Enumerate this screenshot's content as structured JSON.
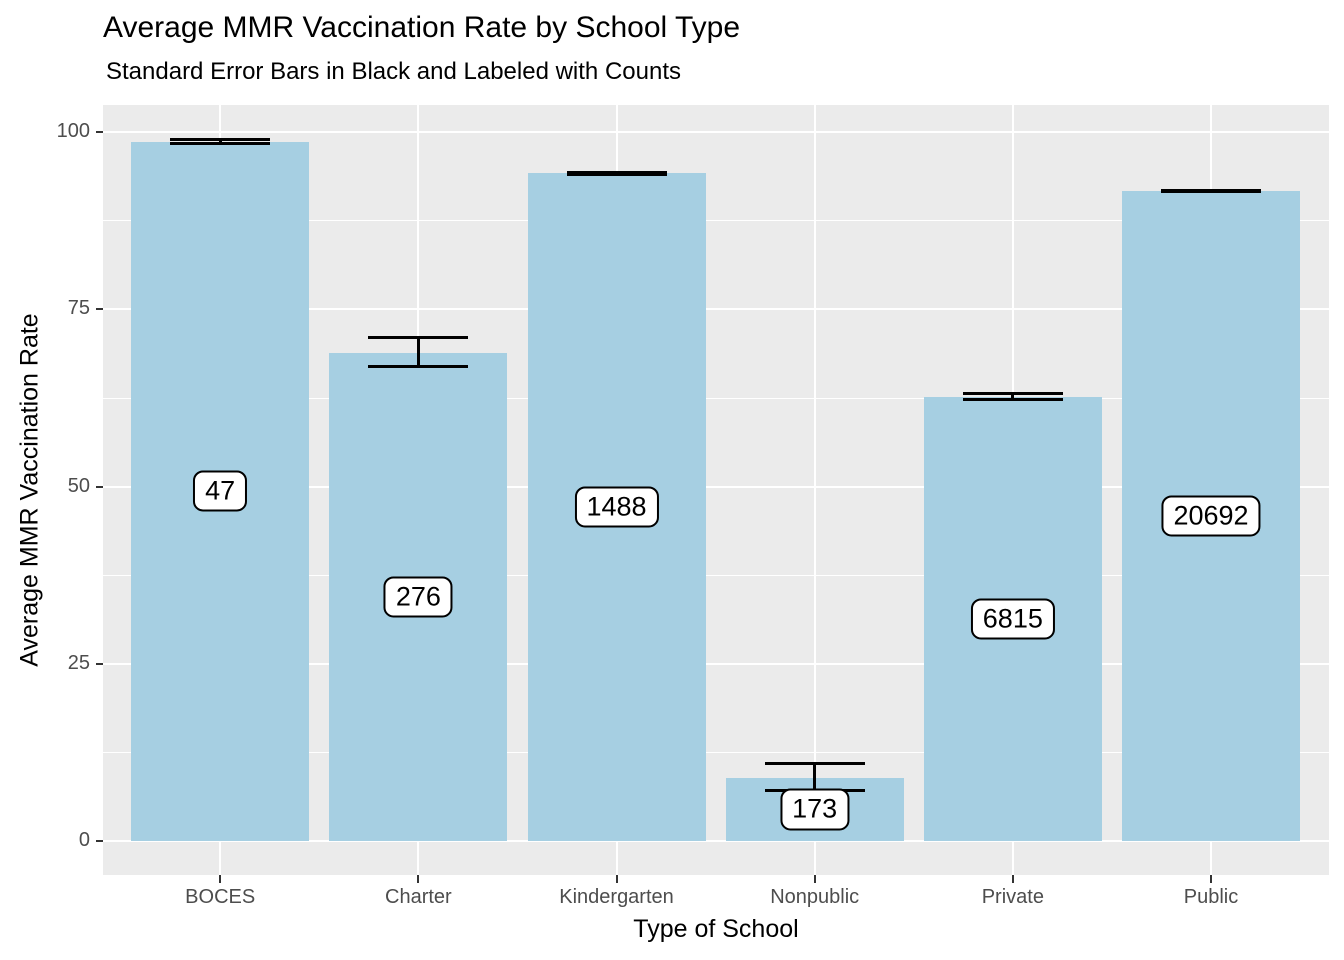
{
  "figure": {
    "title": "Average MMR Vaccination Rate by School Type",
    "subtitle": "Standard Error Bars in Black and Labeled with Counts"
  },
  "chart_data": {
    "type": "bar",
    "title": "Average MMR Vaccination Rate by School Type",
    "subtitle": "Standard Error Bars in Black and Labeled with Counts",
    "xlabel": "Type of School",
    "ylabel": "Average MMR Vaccination Rate",
    "categories": [
      "BOCES",
      "Charter",
      "Kindergarten",
      "Nonpublic",
      "Private",
      "Public"
    ],
    "values": [
      98.7,
      68.9,
      94.2,
      8.9,
      62.6,
      91.7
    ],
    "error_upper": [
      99.2,
      71.2,
      94.5,
      11.1,
      63.3,
      92.0
    ],
    "error_lower": [
      98.2,
      66.7,
      93.8,
      6.9,
      62.1,
      91.5
    ],
    "count_labels": [
      "47",
      "276",
      "1488",
      "173",
      "6815",
      "20692"
    ],
    "yticks": [
      0,
      25,
      50,
      75,
      100
    ],
    "yticks_minor": [
      12.5,
      37.5,
      62.5,
      87.5
    ],
    "ylim": [
      -4.8,
      103.8
    ],
    "grid": true,
    "legend": "none",
    "colors": {
      "bar_fill": "#A6CFE2",
      "error_bar": "#000000",
      "panel_bg": "#EBEBEB",
      "gridline": "#FFFFFF",
      "tick_label": "#4D4D4D",
      "axis_text": "#000000",
      "label_box_bg": "#FFFFFF",
      "label_box_border": "#000000"
    }
  }
}
